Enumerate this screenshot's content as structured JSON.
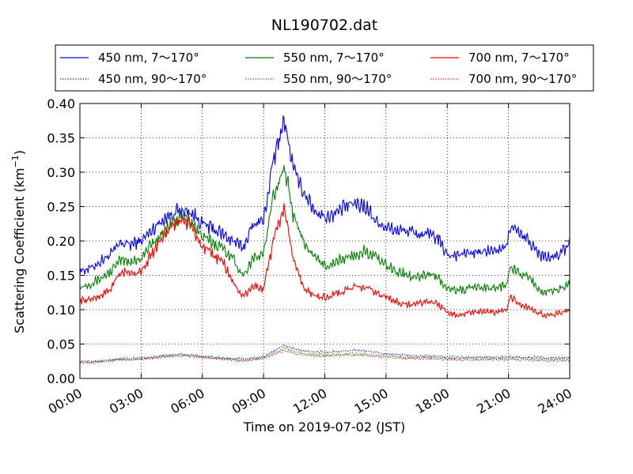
{
  "chart_data": {
    "type": "line",
    "title": "NL190702.dat",
    "xlabel": "Time on 2019-07-02 (JST)",
    "ylabel": "Scattering Coefficient (km",
    "ylabel_sup": "−1",
    "ylabel_close": ")",
    "xlim": [
      0,
      24
    ],
    "ylim": [
      0,
      0.4
    ],
    "grid": true,
    "grid_style": "dotted",
    "legend_placement": "top (outside, 3 columns)",
    "x_ticks": [
      "00:00",
      "03:00",
      "06:00",
      "09:00",
      "12:00",
      "15:00",
      "18:00",
      "21:00",
      "24:00"
    ],
    "y_ticks": [
      "0.00",
      "0.05",
      "0.10",
      "0.15",
      "0.20",
      "0.25",
      "0.30",
      "0.35",
      "0.40"
    ],
    "x": [
      0,
      0.5,
      1,
      1.5,
      2,
      2.5,
      3,
      3.5,
      4,
      4.5,
      5,
      5.5,
      6,
      6.5,
      7,
      7.5,
      8,
      8.5,
      9,
      9.5,
      9.8,
      10,
      10.3,
      10.5,
      11,
      11.5,
      12,
      12.5,
      13,
      13.5,
      14,
      14.5,
      15,
      15.5,
      16,
      16.5,
      17,
      17.5,
      18,
      18.5,
      19,
      19.5,
      20,
      20.5,
      20.9,
      21.1,
      21.5,
      22,
      22.5,
      23,
      23.5,
      24
    ],
    "series": [
      {
        "name": "450 nm, 7～170°",
        "color": "#0000ff",
        "style": "solid",
        "values": [
          0.157,
          0.16,
          0.17,
          0.18,
          0.197,
          0.195,
          0.2,
          0.215,
          0.23,
          0.24,
          0.245,
          0.24,
          0.225,
          0.218,
          0.21,
          0.2,
          0.19,
          0.225,
          0.23,
          0.32,
          0.35,
          0.38,
          0.33,
          0.3,
          0.27,
          0.245,
          0.235,
          0.24,
          0.25,
          0.255,
          0.25,
          0.23,
          0.22,
          0.215,
          0.215,
          0.21,
          0.21,
          0.205,
          0.18,
          0.18,
          0.182,
          0.183,
          0.185,
          0.187,
          0.19,
          0.225,
          0.21,
          0.2,
          0.18,
          0.175,
          0.18,
          0.195
        ]
      },
      {
        "name": "550 nm, 7～170°",
        "color": "#008000",
        "style": "solid",
        "values": [
          0.133,
          0.138,
          0.145,
          0.155,
          0.172,
          0.17,
          0.175,
          0.195,
          0.21,
          0.225,
          0.235,
          0.228,
          0.205,
          0.198,
          0.19,
          0.175,
          0.15,
          0.175,
          0.18,
          0.27,
          0.29,
          0.31,
          0.265,
          0.23,
          0.2,
          0.175,
          0.165,
          0.168,
          0.175,
          0.18,
          0.185,
          0.175,
          0.165,
          0.155,
          0.152,
          0.148,
          0.152,
          0.148,
          0.13,
          0.128,
          0.13,
          0.133,
          0.132,
          0.133,
          0.135,
          0.162,
          0.155,
          0.148,
          0.128,
          0.125,
          0.13,
          0.137
        ]
      },
      {
        "name": "700 nm, 7～170°",
        "color": "#ff0000",
        "style": "solid",
        "values": [
          0.113,
          0.115,
          0.12,
          0.13,
          0.155,
          0.153,
          0.155,
          0.18,
          0.205,
          0.222,
          0.232,
          0.22,
          0.19,
          0.18,
          0.17,
          0.14,
          0.118,
          0.135,
          0.13,
          0.2,
          0.23,
          0.25,
          0.2,
          0.17,
          0.13,
          0.12,
          0.118,
          0.122,
          0.128,
          0.133,
          0.132,
          0.125,
          0.118,
          0.112,
          0.108,
          0.108,
          0.112,
          0.11,
          0.094,
          0.093,
          0.095,
          0.096,
          0.097,
          0.097,
          0.1,
          0.118,
          0.108,
          0.103,
          0.094,
          0.092,
          0.095,
          0.1
        ]
      },
      {
        "name": "450 nm, 90～170°",
        "color": "#0000ff",
        "style": "dotted",
        "values": [
          0.025,
          0.024,
          0.026,
          0.027,
          0.029,
          0.029,
          0.03,
          0.031,
          0.033,
          0.034,
          0.035,
          0.034,
          0.032,
          0.031,
          0.03,
          0.029,
          0.028,
          0.03,
          0.032,
          0.04,
          0.045,
          0.048,
          0.045,
          0.043,
          0.04,
          0.039,
          0.038,
          0.039,
          0.04,
          0.041,
          0.04,
          0.038,
          0.036,
          0.035,
          0.034,
          0.033,
          0.033,
          0.032,
          0.031,
          0.031,
          0.031,
          0.031,
          0.031,
          0.031,
          0.031,
          0.032,
          0.031,
          0.031,
          0.03,
          0.03,
          0.03,
          0.031
        ]
      },
      {
        "name": "550 nm, 90～170°",
        "color": "#008000",
        "style": "dotted",
        "values": [
          0.024,
          0.023,
          0.025,
          0.026,
          0.028,
          0.028,
          0.029,
          0.03,
          0.032,
          0.033,
          0.034,
          0.033,
          0.031,
          0.03,
          0.029,
          0.028,
          0.026,
          0.028,
          0.03,
          0.037,
          0.041,
          0.044,
          0.041,
          0.039,
          0.036,
          0.035,
          0.034,
          0.035,
          0.036,
          0.036,
          0.035,
          0.034,
          0.033,
          0.032,
          0.031,
          0.03,
          0.03,
          0.03,
          0.029,
          0.029,
          0.029,
          0.029,
          0.029,
          0.029,
          0.029,
          0.03,
          0.029,
          0.029,
          0.028,
          0.028,
          0.028,
          0.029
        ]
      },
      {
        "name": "700 nm, 90～170°",
        "color": "#ff0000",
        "style": "dotted",
        "values": [
          0.023,
          0.022,
          0.024,
          0.025,
          0.027,
          0.027,
          0.028,
          0.029,
          0.031,
          0.032,
          0.033,
          0.032,
          0.03,
          0.029,
          0.028,
          0.027,
          0.025,
          0.027,
          0.029,
          0.035,
          0.038,
          0.041,
          0.038,
          0.036,
          0.034,
          0.033,
          0.032,
          0.033,
          0.034,
          0.034,
          0.033,
          0.032,
          0.031,
          0.03,
          0.029,
          0.029,
          0.029,
          0.028,
          0.027,
          0.027,
          0.027,
          0.027,
          0.027,
          0.027,
          0.027,
          0.028,
          0.027,
          0.027,
          0.026,
          0.026,
          0.026,
          0.027
        ]
      }
    ]
  }
}
